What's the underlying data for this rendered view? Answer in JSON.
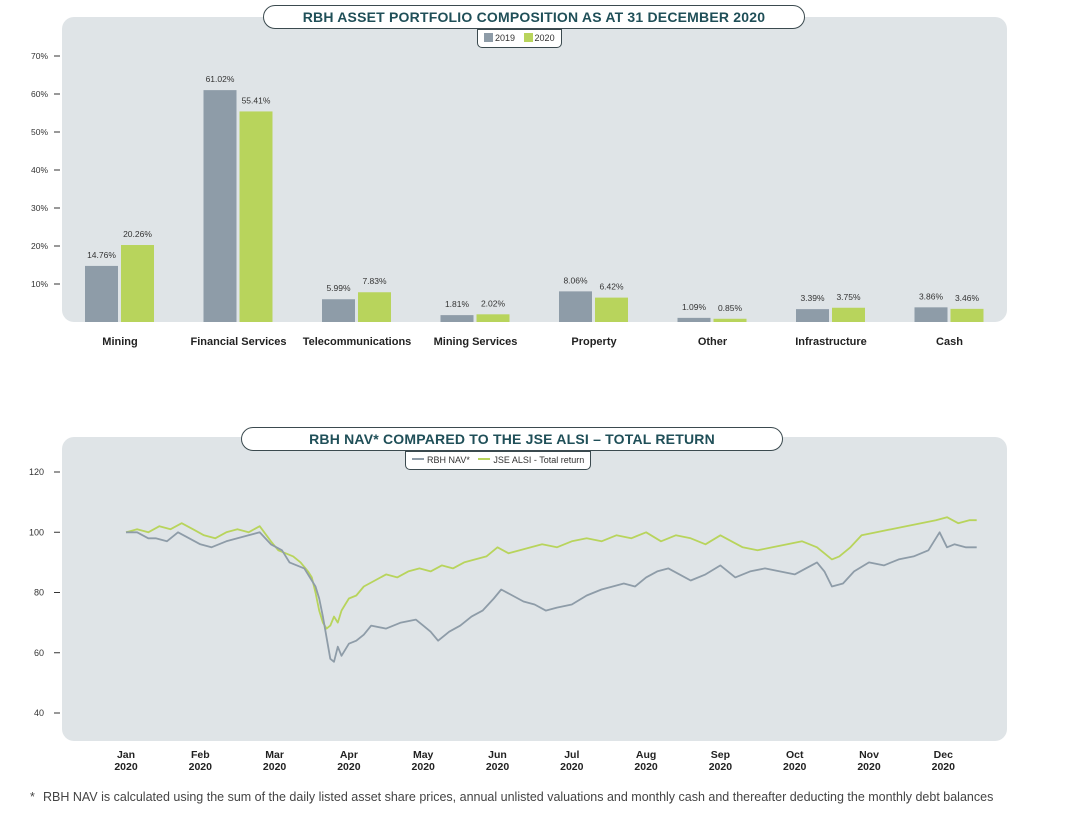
{
  "colors": {
    "s2019": "#8e9ca8",
    "s2020": "#b8d45c",
    "nav": "#8e9ca8",
    "alsi": "#b8d45c",
    "axis": "#333333",
    "panel": "#dfe4e7"
  },
  "chart1": {
    "title": "RBH ASSET PORTFOLIO COMPOSITION AS AT 31 DECEMBER 2020",
    "legend": [
      "2019",
      "2020"
    ]
  },
  "chart2": {
    "title": "RBH NAV* COMPARED TO THE JSE ALSI – TOTAL RETURN",
    "legend": [
      "RBH NAV*",
      "JSE ALSI - Total return"
    ]
  },
  "footnote": {
    "star": "*",
    "text": "RBH NAV is calculated using the sum of the daily listed asset share prices, annual unlisted valuations and monthly cash and thereafter deducting the monthly debt balances"
  },
  "chart_data": [
    {
      "type": "bar",
      "title": "RBH ASSET PORTFOLIO COMPOSITION AS AT 31 DECEMBER 2020",
      "categories": [
        "Mining",
        "Financial Services",
        "Telecommunications",
        "Mining Services",
        "Property",
        "Other",
        "Infrastructure",
        "Cash"
      ],
      "series": [
        {
          "name": "2019",
          "values": [
            14.76,
            61.02,
            5.99,
            1.81,
            8.06,
            1.09,
            3.39,
            3.86
          ],
          "labels": [
            "14.76%",
            "61.02%",
            "5.99%",
            "1.81%",
            "8.06%",
            "1.09%",
            "3.39%",
            "3.86%"
          ]
        },
        {
          "name": "2020",
          "values": [
            20.26,
            55.41,
            7.83,
            2.02,
            6.42,
            0.85,
            3.75,
            3.46
          ],
          "labels": [
            "20.26%",
            "55.41%",
            "7.83%",
            "2.02%",
            "6.42%",
            "0.85%",
            "3.75%",
            "3.46%"
          ]
        }
      ],
      "ylim": [
        0,
        70
      ],
      "yticks": [
        10,
        20,
        30,
        40,
        50,
        60,
        70
      ],
      "ytick_labels": [
        "10%",
        "20%",
        "30%",
        "40%",
        "50%",
        "60%",
        "70%"
      ],
      "xlabel": "",
      "ylabel": "",
      "legend": "top-center"
    },
    {
      "type": "line",
      "title": "RBH NAV* COMPARED TO THE JSE ALSI – TOTAL RETURN",
      "x_unit": "month index (0 = 1 Jan 2020)",
      "xlim": [
        0,
        11.9
      ],
      "ylim": [
        37,
        122
      ],
      "yticks": [
        40,
        60,
        80,
        100,
        120
      ],
      "ytick_labels": [
        "40",
        "60",
        "80",
        "100",
        "120"
      ],
      "xticks": [
        0,
        1,
        2,
        3,
        4,
        5,
        6,
        7,
        8,
        9,
        10,
        11
      ],
      "xtick_labels": [
        {
          "month": "Jan",
          "year": "2020"
        },
        {
          "month": "Feb",
          "year": "2020"
        },
        {
          "month": "Mar",
          "year": "2020"
        },
        {
          "month": "Apr",
          "year": "2020"
        },
        {
          "month": "May",
          "year": "2020"
        },
        {
          "month": "Jun",
          "year": "2020"
        },
        {
          "month": "Jul",
          "year": "2020"
        },
        {
          "month": "Aug",
          "year": "2020"
        },
        {
          "month": "Sep",
          "year": "2020"
        },
        {
          "month": "Oct",
          "year": "2020"
        },
        {
          "month": "Nov",
          "year": "2020"
        },
        {
          "month": "Dec",
          "year": "2020"
        }
      ],
      "legend": "top-center",
      "series": [
        {
          "name": "RBH NAV*",
          "x": [
            0,
            0.15,
            0.3,
            0.4,
            0.55,
            0.7,
            0.85,
            1.0,
            1.15,
            1.35,
            1.5,
            1.65,
            1.8,
            1.95,
            2.1,
            2.2,
            2.3,
            2.4,
            2.5,
            2.55,
            2.6,
            2.65,
            2.7,
            2.75,
            2.8,
            2.85,
            2.9,
            3.0,
            3.1,
            3.2,
            3.3,
            3.5,
            3.7,
            3.9,
            4.0,
            4.1,
            4.2,
            4.35,
            4.5,
            4.65,
            4.8,
            4.95,
            5.05,
            5.2,
            5.35,
            5.5,
            5.65,
            5.8,
            6.0,
            6.2,
            6.4,
            6.55,
            6.7,
            6.85,
            7.0,
            7.15,
            7.3,
            7.45,
            7.6,
            7.8,
            8.0,
            8.2,
            8.4,
            8.6,
            8.8,
            9.0,
            9.15,
            9.3,
            9.4,
            9.5,
            9.65,
            9.8,
            10.0,
            10.2,
            10.4,
            10.6,
            10.8,
            10.95,
            11.05,
            11.15,
            11.3,
            11.45
          ],
          "values": [
            100,
            100,
            98,
            98,
            97,
            100,
            98,
            96,
            95,
            97,
            98,
            99,
            100,
            96,
            94,
            90,
            89,
            88,
            84,
            82,
            78,
            72,
            65,
            58,
            57,
            62,
            59,
            63,
            64,
            66,
            69,
            68,
            70,
            71,
            69,
            67,
            64,
            67,
            69,
            72,
            74,
            78,
            81,
            79,
            77,
            76,
            74,
            75,
            76,
            79,
            81,
            82,
            83,
            82,
            85,
            87,
            88,
            86,
            84,
            86,
            89,
            85,
            87,
            88,
            87,
            86,
            88,
            90,
            87,
            82,
            83,
            87,
            90,
            89,
            91,
            92,
            94,
            100,
            95,
            96,
            95,
            95
          ]
        },
        {
          "name": "JSE ALSI - Total return",
          "x": [
            0,
            0.15,
            0.3,
            0.45,
            0.6,
            0.75,
            0.9,
            1.05,
            1.2,
            1.35,
            1.5,
            1.65,
            1.8,
            1.95,
            2.05,
            2.15,
            2.25,
            2.35,
            2.45,
            2.5,
            2.55,
            2.6,
            2.65,
            2.7,
            2.75,
            2.8,
            2.85,
            2.9,
            2.95,
            3.0,
            3.1,
            3.2,
            3.35,
            3.5,
            3.65,
            3.8,
            3.95,
            4.1,
            4.25,
            4.4,
            4.55,
            4.7,
            4.85,
            5.0,
            5.15,
            5.3,
            5.45,
            5.6,
            5.8,
            6.0,
            6.2,
            6.4,
            6.6,
            6.8,
            7.0,
            7.2,
            7.4,
            7.6,
            7.8,
            8.0,
            8.15,
            8.3,
            8.5,
            8.7,
            8.9,
            9.1,
            9.2,
            9.3,
            9.4,
            9.5,
            9.6,
            9.75,
            9.9,
            10.1,
            10.3,
            10.5,
            10.7,
            10.9,
            11.05,
            11.2,
            11.35,
            11.45
          ],
          "values": [
            100,
            101,
            100,
            102,
            101,
            103,
            101,
            99,
            98,
            100,
            101,
            100,
            102,
            97,
            94,
            93,
            92,
            90,
            87,
            85,
            80,
            74,
            70,
            68,
            69,
            72,
            70,
            74,
            76,
            78,
            79,
            82,
            84,
            86,
            85,
            87,
            88,
            87,
            89,
            88,
            90,
            91,
            92,
            95,
            93,
            94,
            95,
            96,
            95,
            97,
            98,
            97,
            99,
            98,
            100,
            97,
            99,
            98,
            96,
            99,
            97,
            95,
            94,
            95,
            96,
            97,
            96,
            95,
            93,
            91,
            92,
            95,
            99,
            100,
            101,
            102,
            103,
            104,
            105,
            103,
            104,
            104
          ]
        }
      ]
    }
  ]
}
